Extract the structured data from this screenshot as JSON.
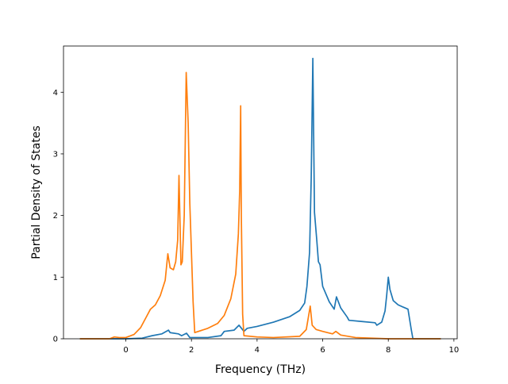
{
  "chart_data": {
    "type": "line",
    "title": "",
    "xlabel": "Frequency (THz)",
    "ylabel": "Partial Density of States",
    "xlim": [
      -1.9,
      10.1
    ],
    "ylim": [
      0,
      4.75
    ],
    "xticks": [
      0,
      2,
      4,
      6,
      8,
      10
    ],
    "yticks": [
      0,
      1,
      2,
      3,
      4
    ],
    "grid": false,
    "legend": "none",
    "series": [
      {
        "color": "#1f77b4",
        "points": [
          [
            -1.4,
            0
          ],
          [
            0,
            0
          ],
          [
            0.5,
            0.01
          ],
          [
            0.8,
            0.05
          ],
          [
            1.1,
            0.08
          ],
          [
            1.3,
            0.14
          ],
          [
            1.35,
            0.1
          ],
          [
            1.6,
            0.08
          ],
          [
            1.7,
            0.05
          ],
          [
            1.85,
            0.09
          ],
          [
            1.95,
            0.02
          ],
          [
            2.5,
            0.02
          ],
          [
            2.9,
            0.05
          ],
          [
            3.0,
            0.12
          ],
          [
            3.3,
            0.14
          ],
          [
            3.45,
            0.22
          ],
          [
            3.6,
            0.12
          ],
          [
            3.7,
            0.17
          ],
          [
            4.0,
            0.2
          ],
          [
            4.5,
            0.27
          ],
          [
            5.0,
            0.36
          ],
          [
            5.3,
            0.46
          ],
          [
            5.45,
            0.58
          ],
          [
            5.52,
            0.85
          ],
          [
            5.6,
            1.4
          ],
          [
            5.65,
            2.6
          ],
          [
            5.7,
            4.55
          ],
          [
            5.75,
            2.05
          ],
          [
            5.82,
            1.6
          ],
          [
            5.87,
            1.25
          ],
          [
            5.92,
            1.2
          ],
          [
            6.0,
            0.85
          ],
          [
            6.2,
            0.6
          ],
          [
            6.35,
            0.48
          ],
          [
            6.42,
            0.68
          ],
          [
            6.55,
            0.5
          ],
          [
            6.75,
            0.35
          ],
          [
            6.8,
            0.3
          ],
          [
            7.2,
            0.28
          ],
          [
            7.6,
            0.26
          ],
          [
            7.65,
            0.22
          ],
          [
            7.8,
            0.27
          ],
          [
            7.9,
            0.45
          ],
          [
            7.95,
            0.7
          ],
          [
            8.0,
            1.0
          ],
          [
            8.05,
            0.8
          ],
          [
            8.15,
            0.62
          ],
          [
            8.3,
            0.55
          ],
          [
            8.6,
            0.48
          ],
          [
            8.7,
            0.15
          ],
          [
            8.75,
            0
          ],
          [
            9.6,
            0
          ]
        ]
      },
      {
        "color": "#ff7f0e",
        "points": [
          [
            -1.4,
            0
          ],
          [
            -0.5,
            0
          ],
          [
            -0.35,
            0.03
          ],
          [
            -0.2,
            0.02
          ],
          [
            0,
            0.02
          ],
          [
            0.25,
            0.07
          ],
          [
            0.45,
            0.18
          ],
          [
            0.65,
            0.38
          ],
          [
            0.75,
            0.48
          ],
          [
            0.9,
            0.55
          ],
          [
            1.05,
            0.7
          ],
          [
            1.2,
            0.95
          ],
          [
            1.28,
            1.38
          ],
          [
            1.35,
            1.15
          ],
          [
            1.45,
            1.12
          ],
          [
            1.52,
            1.25
          ],
          [
            1.58,
            1.6
          ],
          [
            1.62,
            2.65
          ],
          [
            1.68,
            1.2
          ],
          [
            1.72,
            1.25
          ],
          [
            1.78,
            2.0
          ],
          [
            1.84,
            4.32
          ],
          [
            1.9,
            3.5
          ],
          [
            1.95,
            2.2
          ],
          [
            2.05,
            0.6
          ],
          [
            2.1,
            0.1
          ],
          [
            2.5,
            0.17
          ],
          [
            2.8,
            0.25
          ],
          [
            3.0,
            0.38
          ],
          [
            3.2,
            0.65
          ],
          [
            3.35,
            1.05
          ],
          [
            3.43,
            1.7
          ],
          [
            3.47,
            2.4
          ],
          [
            3.5,
            3.78
          ],
          [
            3.52,
            2.0
          ],
          [
            3.56,
            0.4
          ],
          [
            3.6,
            0.05
          ],
          [
            4.0,
            0.03
          ],
          [
            4.5,
            0.02
          ],
          [
            5.3,
            0.04
          ],
          [
            5.5,
            0.15
          ],
          [
            5.62,
            0.53
          ],
          [
            5.68,
            0.22
          ],
          [
            5.8,
            0.15
          ],
          [
            6.0,
            0.12
          ],
          [
            6.3,
            0.08
          ],
          [
            6.4,
            0.12
          ],
          [
            6.55,
            0.06
          ],
          [
            7.0,
            0.02
          ],
          [
            8.0,
            0
          ],
          [
            9.6,
            0
          ]
        ]
      }
    ]
  }
}
